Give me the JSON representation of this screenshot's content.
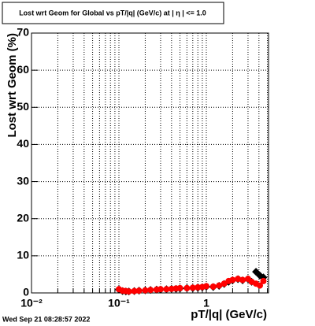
{
  "chart_data": {
    "type": "scatter",
    "title": "Lost wrt Geom for Global vs pT/|q| (GeV/c) at | η | <= 1.0",
    "x_label": "pT/|q| (GeV/c)",
    "y_label": "Lost wrt Geom (%)",
    "timestamp": "Wed Sep 21 08:28:57 2022",
    "log_x": true,
    "grid": true,
    "xlim": [
      0.01,
      5.15
    ],
    "ylim": [
      0,
      70
    ],
    "xticks": [
      {
        "value": 0.01,
        "label": "10⁻²"
      },
      {
        "value": 0.1,
        "label": "10⁻¹"
      },
      1
    ],
    "xminorticks": [
      0.02,
      0.03,
      0.04,
      0.05,
      0.06,
      0.07,
      0.08,
      0.09,
      0.2,
      0.3,
      0.4,
      0.5,
      0.6,
      0.7,
      0.8,
      0.9,
      2,
      3,
      4,
      5
    ],
    "yticks": [
      0,
      10,
      20,
      30,
      40,
      50,
      60,
      70
    ],
    "x": [
      0.1,
      0.11,
      0.12,
      0.13,
      0.15,
      0.17,
      0.2,
      0.23,
      0.27,
      0.3,
      0.35,
      0.4,
      0.45,
      0.5,
      0.6,
      0.7,
      0.8,
      0.9,
      1.0,
      1.2,
      1.4,
      1.6,
      1.8,
      2.0,
      2.3,
      2.6,
      3.0,
      3.3,
      3.7,
      4.1,
      4.5
    ],
    "series": [
      {
        "color": "#000000",
        "marker": "diamond",
        "values": [
          0.9,
          0.5,
          0.4,
          0.4,
          0.5,
          0.6,
          0.7,
          0.8,
          0.9,
          0.9,
          1.0,
          1.1,
          1.1,
          1.2,
          1.3,
          1.3,
          1.4,
          1.5,
          1.7,
          1.6,
          1.9,
          2.4,
          3.0,
          3.4,
          3.7,
          3.4,
          3.7,
          3.0,
          5.7,
          4.7,
          4.2
        ]
      },
      {
        "color": "#ff0000",
        "marker": "circle",
        "values": [
          1.0,
          0.6,
          0.5,
          0.4,
          0.5,
          0.6,
          0.7,
          0.8,
          0.9,
          1.0,
          1.0,
          1.1,
          1.2,
          1.3,
          1.3,
          1.4,
          1.5,
          1.6,
          1.8,
          1.7,
          2.0,
          2.5,
          3.2,
          3.5,
          3.8,
          3.5,
          3.8,
          3.0,
          2.5,
          2.0,
          3.2
        ]
      }
    ]
  }
}
